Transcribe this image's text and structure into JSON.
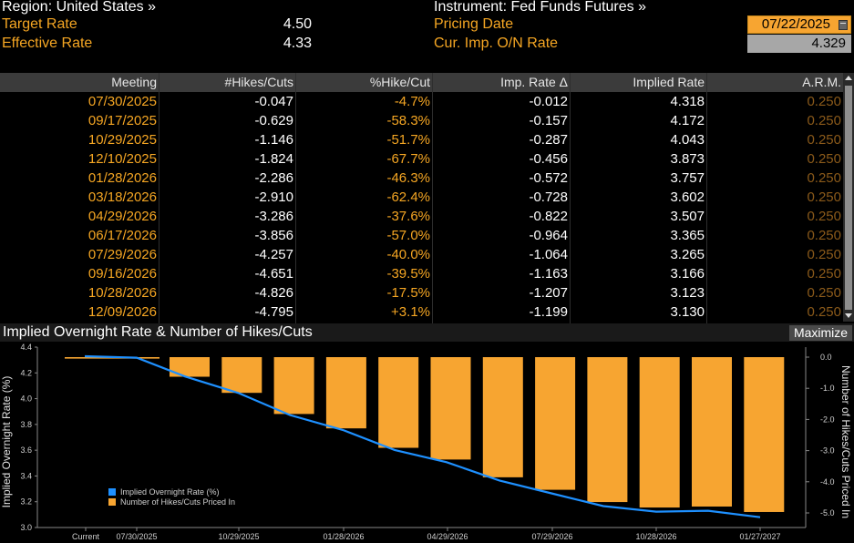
{
  "header": {
    "region": "Region: United States »",
    "target_rate_label": "Target Rate",
    "target_rate_value": "4.50",
    "effective_rate_label": "Effective Rate",
    "effective_rate_value": "4.33",
    "instrument": "Instrument: Fed Funds Futures »",
    "pricing_date_label": "Pricing Date",
    "pricing_date_value": "07/22/2025",
    "cur_imp_label": "Cur. Imp. O/N Rate",
    "cur_imp_value": "4.329"
  },
  "table": {
    "columns": [
      "Meeting",
      "#Hikes/Cuts",
      "%Hike/Cut",
      "Imp. Rate Δ",
      "Implied Rate",
      "A.R.M."
    ],
    "rows": [
      [
        "07/30/2025",
        "-0.047",
        "-4.7%",
        "-0.012",
        "4.318",
        "0.250"
      ],
      [
        "09/17/2025",
        "-0.629",
        "-58.3%",
        "-0.157",
        "4.172",
        "0.250"
      ],
      [
        "10/29/2025",
        "-1.146",
        "-51.7%",
        "-0.287",
        "4.043",
        "0.250"
      ],
      [
        "12/10/2025",
        "-1.824",
        "-67.7%",
        "-0.456",
        "3.873",
        "0.250"
      ],
      [
        "01/28/2026",
        "-2.286",
        "-46.3%",
        "-0.572",
        "3.757",
        "0.250"
      ],
      [
        "03/18/2026",
        "-2.910",
        "-62.4%",
        "-0.728",
        "3.602",
        "0.250"
      ],
      [
        "04/29/2026",
        "-3.286",
        "-37.6%",
        "-0.822",
        "3.507",
        "0.250"
      ],
      [
        "06/17/2026",
        "-3.856",
        "-57.0%",
        "-0.964",
        "3.365",
        "0.250"
      ],
      [
        "07/29/2026",
        "-4.257",
        "-40.0%",
        "-1.064",
        "3.265",
        "0.250"
      ],
      [
        "09/16/2026",
        "-4.651",
        "-39.5%",
        "-1.163",
        "3.166",
        "0.250"
      ],
      [
        "10/28/2026",
        "-4.826",
        "-17.5%",
        "-1.207",
        "3.123",
        "0.250"
      ],
      [
        "12/09/2026",
        "-4.795",
        "+3.1%",
        "-1.199",
        "3.130",
        "0.250"
      ]
    ]
  },
  "chart_panel": {
    "title": "Implied Overnight Rate & Number of Hikes/Cuts",
    "maximize_label": "Maximize"
  },
  "chart_data": {
    "type": "bar",
    "title": "Implied Overnight Rate & Number of Hikes/Cuts",
    "ylabel": "Implied Overnight Rate (%)",
    "y2label": "Number of Hikes/Cuts Priced In",
    "ylim": [
      3.0,
      4.4
    ],
    "y2lim": [
      -5.0,
      0.0
    ],
    "y_ticks": [
      "4.4",
      "4.2",
      "4.0",
      "3.8",
      "3.6",
      "3.4",
      "3.2",
      "3.0"
    ],
    "y2_ticks": [
      "0.0",
      "-1.0",
      "-2.0",
      "-3.0",
      "-4.0",
      "-5.0"
    ],
    "x_tick_labels": [
      "Current",
      "07/30/2025",
      "10/29/2025",
      "01/28/2026",
      "04/29/2026",
      "07/29/2026",
      "10/28/2026",
      "01/27/2027"
    ],
    "grid": false,
    "legend_position": "bottom-left",
    "colors": {
      "line": "#1e90ff",
      "bars": "#f7a531"
    },
    "series": [
      {
        "name": "Implied Overnight Rate (%)",
        "type": "line",
        "values": [
          4.329,
          4.318,
          4.172,
          4.043,
          3.873,
          3.757,
          3.602,
          3.507,
          3.365,
          3.265,
          3.166,
          3.123,
          3.13,
          3.08
        ]
      },
      {
        "name": "Number of Hikes/Cuts Priced In",
        "type": "bar",
        "values": [
          -0.047,
          -0.629,
          -1.146,
          -1.824,
          -2.286,
          -2.91,
          -3.286,
          -3.856,
          -4.257,
          -4.651,
          -4.826,
          -4.795,
          -4.97
        ]
      }
    ]
  }
}
